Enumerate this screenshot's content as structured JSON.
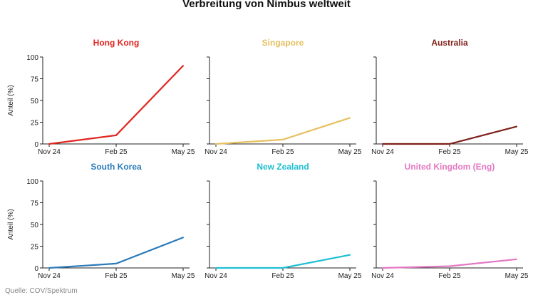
{
  "chart_data": [
    {
      "type": "line",
      "title": "Hong Kong",
      "color": "#e0251f",
      "categories": [
        "Nov 24",
        "Feb 25",
        "May 25"
      ],
      "values": [
        0,
        10,
        90
      ],
      "ylabel": "Anteil (%)",
      "ylim": [
        0,
        100
      ],
      "yticks": [
        0,
        25,
        50,
        75,
        100
      ],
      "grid": false
    },
    {
      "type": "line",
      "title": "Singapore",
      "color": "#e6c060",
      "categories": [
        "Nov 24",
        "Feb 25",
        "May 25"
      ],
      "values": [
        0,
        5,
        30
      ],
      "ylim": [
        0,
        100
      ],
      "grid": false
    },
    {
      "type": "line",
      "title": "Australia",
      "color": "#7f1f1a",
      "categories": [
        "Nov 24",
        "Feb 25",
        "May 25"
      ],
      "values": [
        0,
        0,
        20
      ],
      "ylim": [
        0,
        100
      ],
      "grid": false
    },
    {
      "type": "line",
      "title": "South Korea",
      "color": "#2b7bba",
      "categories": [
        "Nov 24",
        "Feb 25",
        "May 25"
      ],
      "values": [
        0,
        5,
        35
      ],
      "ylabel": "Anteil (%)",
      "ylim": [
        0,
        100
      ],
      "yticks": [
        0,
        25,
        50,
        75,
        100
      ],
      "grid": false
    },
    {
      "type": "line",
      "title": "New Zealand",
      "color": "#1ebfd1",
      "categories": [
        "Nov 24",
        "Feb 25",
        "May 25"
      ],
      "values": [
        0,
        0,
        15
      ],
      "ylim": [
        0,
        100
      ],
      "grid": false
    },
    {
      "type": "line",
      "title": "United Kingdom (Eng)",
      "color": "#e377c2",
      "categories": [
        "Nov 24",
        "Feb 25",
        "May 25"
      ],
      "values": [
        0,
        2,
        10
      ],
      "ylim": [
        0,
        100
      ],
      "grid": false
    }
  ],
  "figure_title": "Verbreitung von Nimbus weltweit",
  "source": "Quelle: COV/Spektrum"
}
